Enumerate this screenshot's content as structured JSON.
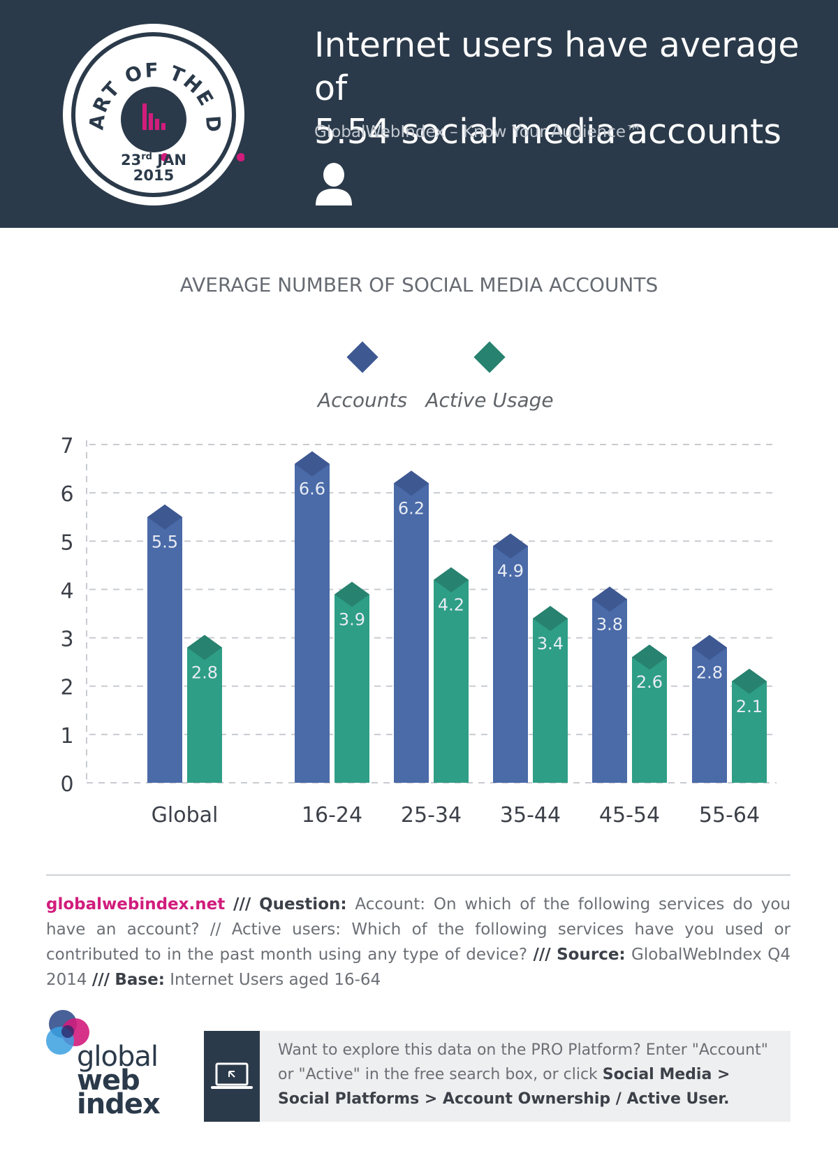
{
  "header": {
    "title_line1": "Internet users have average of",
    "title_line2": "5.54 social media accounts",
    "subtitle": "GlobalWebIndex – Know Your Audience™",
    "badge": {
      "text": "CHART OF THE DAY",
      "day": "23",
      "day_suffix": "rd",
      "month": "JAN",
      "year": "2015"
    },
    "icon": "user-icon"
  },
  "colors": {
    "header_bg": "#2b3a4a",
    "accounts": "#4a6aa8",
    "accounts_top": "#3e5892",
    "active": "#2e9e86",
    "active_top": "#27826f",
    "accent_pink": "#d11c7c"
  },
  "chart_data": {
    "type": "bar",
    "title": "AVERAGE NUMBER OF SOCIAL MEDIA ACCOUNTS",
    "categories": [
      "Global",
      "16-24",
      "25-34",
      "35-44",
      "45-54",
      "55-64"
    ],
    "series": [
      {
        "name": "Accounts",
        "values": [
          5.5,
          6.6,
          6.2,
          4.9,
          3.8,
          2.8
        ]
      },
      {
        "name": "Active Usage",
        "values": [
          2.8,
          3.9,
          4.2,
          3.4,
          2.6,
          2.1
        ]
      }
    ],
    "ylim": [
      0,
      7
    ],
    "yticks": [
      0,
      1,
      2,
      3,
      4,
      5,
      6,
      7
    ],
    "grid": true,
    "legend_position": "top-center",
    "xlabel": "",
    "ylabel": ""
  },
  "notes": {
    "site": "globalwebindex.net",
    "sep": "///",
    "question_label": "Question:",
    "question_text": "Account: On which of the following services do you have an account? // Active users: Which of the following services have you used or contributed to in the past month using any type of device?",
    "source_label": "Source:",
    "source_text": "GlobalWebIndex Q4 2014",
    "base_label": "Base:",
    "base_text": "Internet Users aged 16-64"
  },
  "footer": {
    "logo_line1": "global",
    "logo_line2": "web",
    "logo_line3": "index",
    "pro_text_1": "Want to explore this data on the PRO Platform? Enter \"Account\" or \"Active\" in the free search box, or click ",
    "pro_bold_1": "Social Media > Social Platforms > Account Ownership / Active User.",
    "pro_icon": "laptop-icon"
  }
}
